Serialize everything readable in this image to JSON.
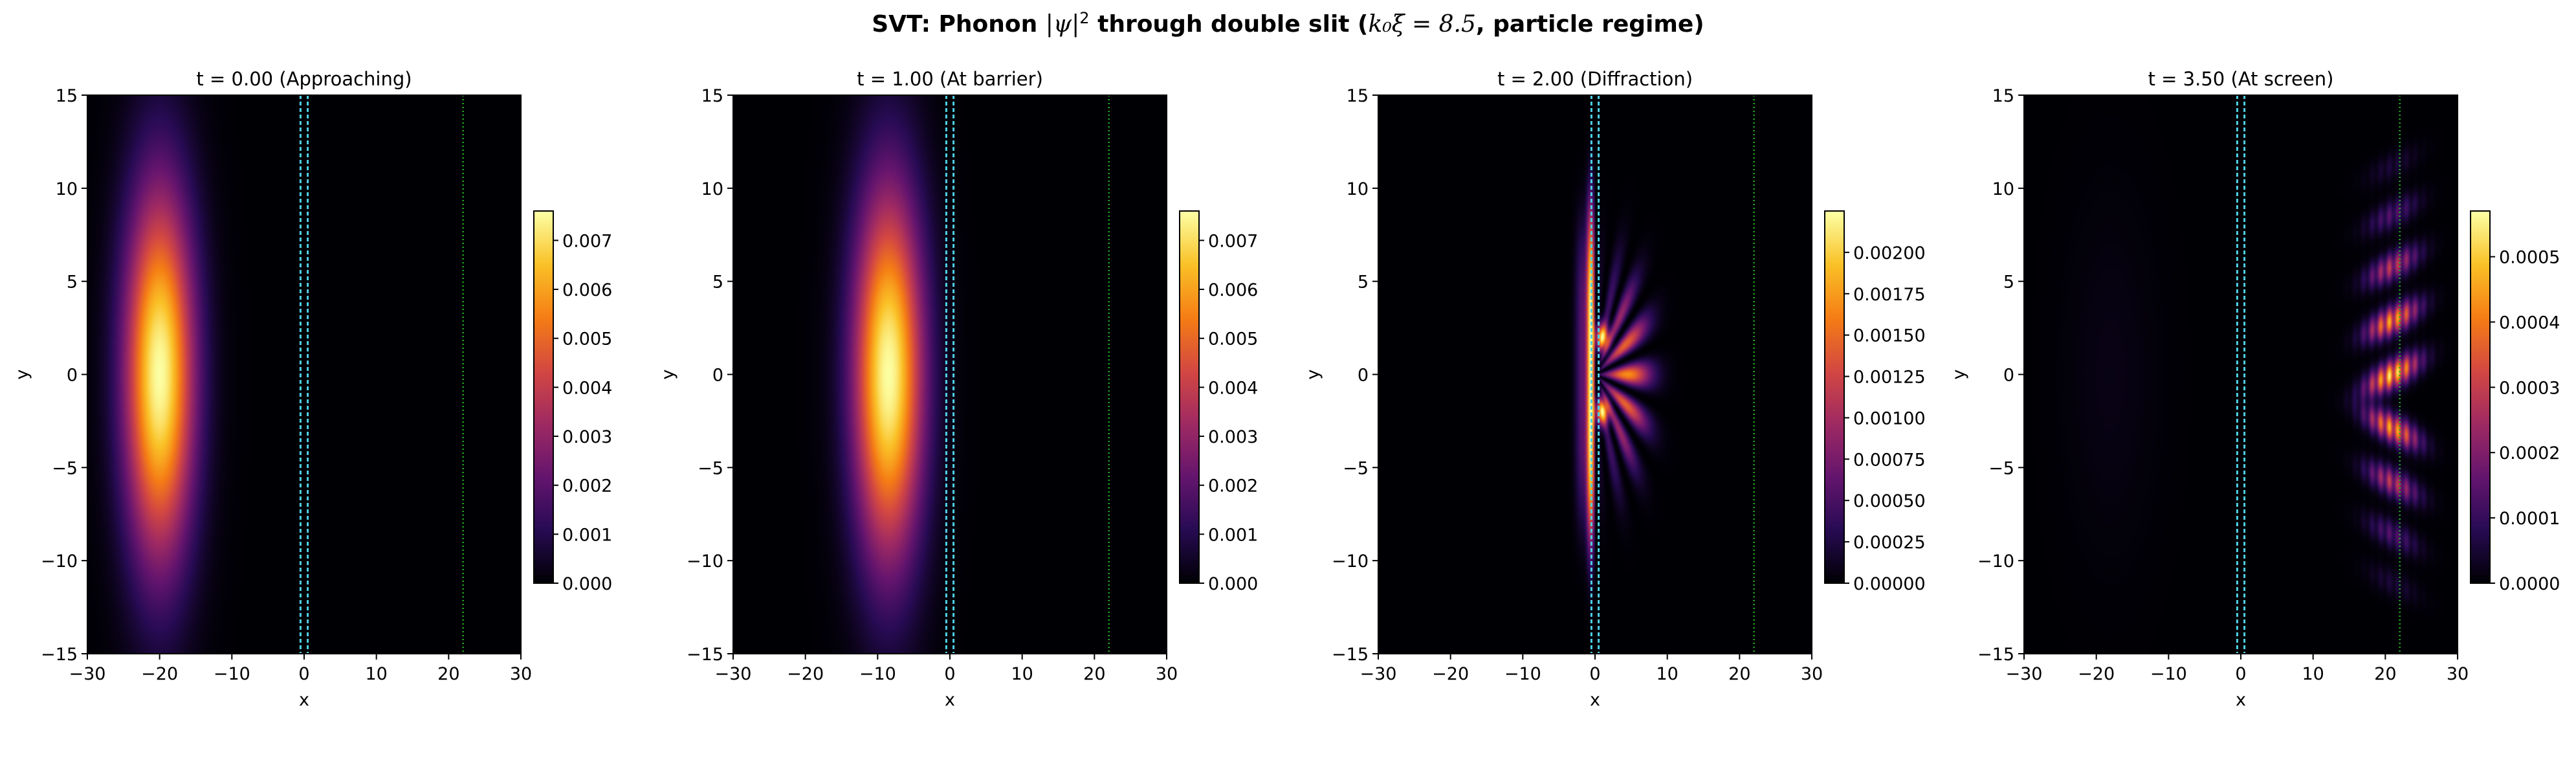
{
  "figure": {
    "title_prefix": "SVT: Phonon ",
    "title_math": "|ψ|",
    "title_sup": "2",
    "title_suffix": " through double slit (",
    "title_param": "k₀ξ = 8.5",
    "title_end": ", particle regime)"
  },
  "colors": {
    "colormap": "inferno",
    "barrier_lines": "#4fd1e6",
    "screen_line": "#22aa22",
    "background": "#000004"
  },
  "chart_data": [
    {
      "type": "heatmap",
      "title": "t = 0.00   (Approaching)",
      "xlabel": "x",
      "ylabel": "y",
      "xlim": [
        -30,
        30
      ],
      "ylim": [
        -15,
        15
      ],
      "xticks": [
        -30,
        -20,
        -10,
        0,
        10,
        20,
        30
      ],
      "yticks": [
        -15,
        -10,
        -5,
        0,
        5,
        10,
        15
      ],
      "barrier_x": [
        -0.5,
        0.5
      ],
      "screen_x": 22,
      "colorbar": {
        "min": 0,
        "max": 0.0076,
        "ticks": [
          "0.000",
          "0.001",
          "0.002",
          "0.003",
          "0.004",
          "0.005",
          "0.006",
          "0.007"
        ],
        "tick_values": [
          0,
          0.001,
          0.002,
          0.003,
          0.004,
          0.005,
          0.006,
          0.007
        ]
      },
      "pattern": {
        "mode": "packet",
        "center_x": -20,
        "center_y": 0,
        "sigma_x": 3.4,
        "sigma_y": 7.0,
        "peak": 0.0075
      }
    },
    {
      "type": "heatmap",
      "title": "t = 1.00   (At barrier)",
      "xlabel": "x",
      "ylabel": "y",
      "xlim": [
        -30,
        30
      ],
      "ylim": [
        -15,
        15
      ],
      "xticks": [
        -30,
        -20,
        -10,
        0,
        10,
        20,
        30
      ],
      "yticks": [
        -15,
        -10,
        -5,
        0,
        5,
        10,
        15
      ],
      "barrier_x": [
        -0.5,
        0.5
      ],
      "screen_x": 22,
      "colorbar": {
        "min": 0,
        "max": 0.0076,
        "ticks": [
          "0.000",
          "0.001",
          "0.002",
          "0.003",
          "0.004",
          "0.005",
          "0.006",
          "0.007"
        ],
        "tick_values": [
          0,
          0.001,
          0.002,
          0.003,
          0.004,
          0.005,
          0.006,
          0.007
        ]
      },
      "pattern": {
        "mode": "packet",
        "center_x": -8.5,
        "center_y": 0,
        "sigma_x": 3.4,
        "sigma_y": 7.0,
        "peak": 0.0075
      }
    },
    {
      "type": "heatmap",
      "title": "t = 2.00   (Diffraction)",
      "xlabel": "x",
      "ylabel": "y",
      "xlim": [
        -30,
        30
      ],
      "ylim": [
        -15,
        15
      ],
      "xticks": [
        -30,
        -20,
        -10,
        0,
        10,
        20,
        30
      ],
      "yticks": [
        -15,
        -10,
        -5,
        0,
        5,
        10,
        15
      ],
      "barrier_x": [
        -0.5,
        0.5
      ],
      "screen_x": 22,
      "colorbar": {
        "min": 0,
        "max": 0.00225,
        "ticks": [
          "0.00000",
          "0.00025",
          "0.00050",
          "0.00075",
          "0.00100",
          "0.00125",
          "0.00150",
          "0.00175",
          "0.00200"
        ],
        "tick_values": [
          0,
          0.00025,
          0.0005,
          0.00075,
          0.001,
          0.00125,
          0.0015,
          0.00175,
          0.002
        ]
      },
      "pattern": {
        "mode": "diffraction",
        "wall_x": -0.6,
        "slits_y": [
          -2,
          2
        ],
        "peak": 0.0022
      }
    },
    {
      "type": "heatmap",
      "title": "t = 3.50   (At screen)",
      "xlabel": "x",
      "ylabel": "y",
      "xlim": [
        -30,
        30
      ],
      "ylim": [
        -15,
        15
      ],
      "xticks": [
        -30,
        -20,
        -10,
        0,
        10,
        20,
        30
      ],
      "yticks": [
        -15,
        -10,
        -5,
        0,
        5,
        10,
        15
      ],
      "barrier_x": [
        -0.5,
        0.5
      ],
      "screen_x": 22,
      "colorbar": {
        "min": 0,
        "max": 0.00057,
        "ticks": [
          "0.0000",
          "0.0001",
          "0.0002",
          "0.0003",
          "0.0004",
          "0.0005"
        ],
        "tick_values": [
          0,
          0.0001,
          0.0002,
          0.0003,
          0.0004,
          0.0005
        ]
      },
      "pattern": {
        "mode": "screen",
        "center_x": 21,
        "fringe_y": [
          0,
          2.9,
          -2.9,
          5.8,
          -5.8,
          8.6,
          -8.6,
          11.2,
          -11.2
        ],
        "peak": 0.00056
      }
    }
  ]
}
